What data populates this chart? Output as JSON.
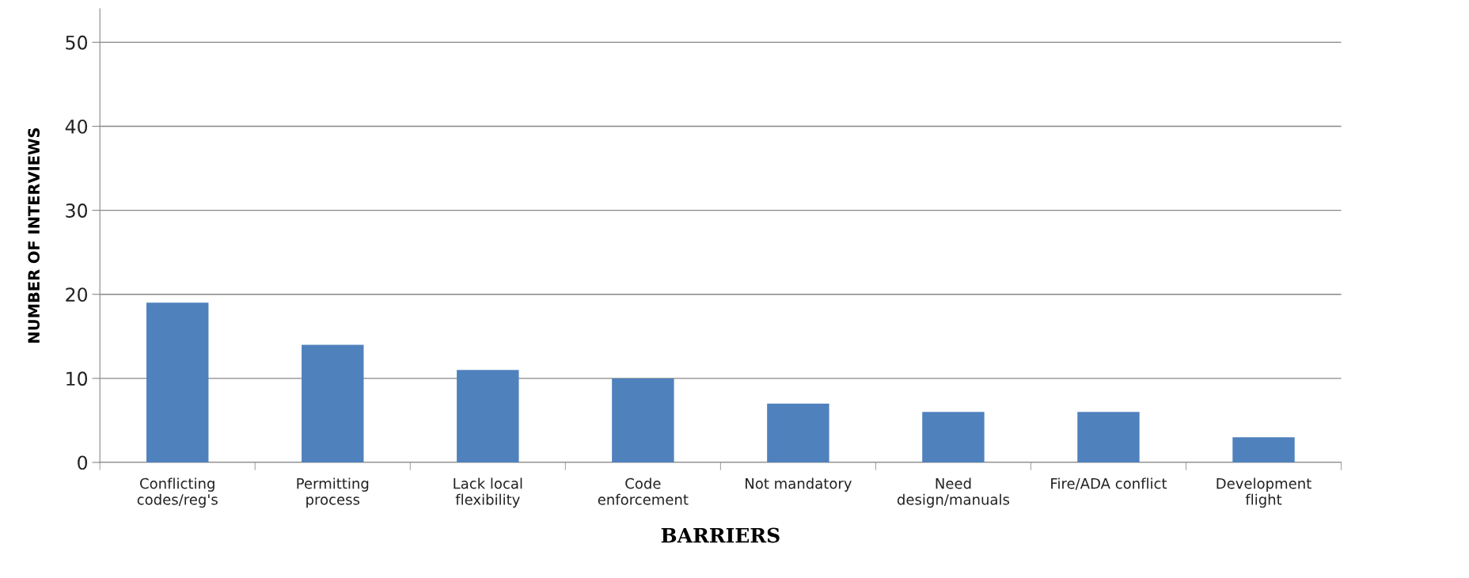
{
  "chart_data": {
    "type": "bar",
    "categories": [
      "Conflicting\ncodes/reg's",
      "Permitting\nprocess",
      "Lack local\nflexibility",
      "Code\nenforcement",
      "Not mandatory",
      "Need\ndesign/manuals",
      "Fire/ADA conflict",
      "Development\nflight"
    ],
    "values": [
      19,
      14,
      11,
      10,
      7,
      6,
      6,
      3
    ],
    "color": "#4f81bd",
    "xlabel": "BARRIERS",
    "ylabel": "NUMBER OF INTERVIEWS",
    "ylim": [
      0,
      54
    ],
    "yticks": [
      0,
      10,
      20,
      30,
      40,
      50
    ],
    "grid": "y"
  }
}
